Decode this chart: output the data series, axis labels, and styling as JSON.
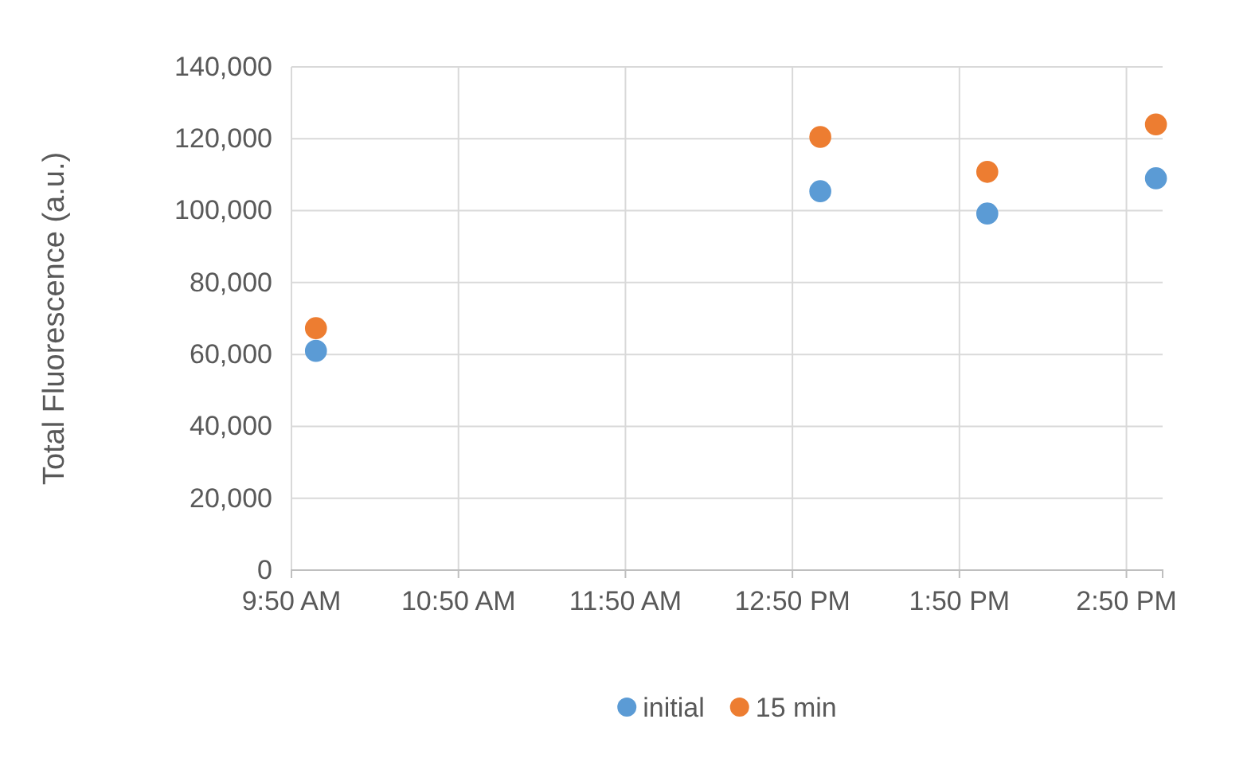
{
  "chart_data": {
    "type": "scatter",
    "ylabel": "Total Fluorescence (a.u.)",
    "x": [
      9.98,
      13.0,
      14.0,
      15.01
    ],
    "series": [
      {
        "name": "initial",
        "color": "#5b9bd5",
        "values": [
          61000,
          105400,
          99200,
          109000
        ]
      },
      {
        "name": "15 min",
        "color": "#ed7d31",
        "values": [
          67300,
          120500,
          110800,
          124000
        ]
      }
    ],
    "xlim": [
      9.8333,
      15.05
    ],
    "xticks": [
      {
        "value": 9.8333,
        "label": "9:50 AM"
      },
      {
        "value": 10.8333,
        "label": "10:50 AM"
      },
      {
        "value": 11.8333,
        "label": "11:50 AM"
      },
      {
        "value": 12.8333,
        "label": "12:50 PM"
      },
      {
        "value": 13.8333,
        "label": "1:50 PM"
      },
      {
        "value": 14.8333,
        "label": "2:50 PM"
      }
    ],
    "ylim": [
      0,
      140000
    ],
    "yticks": [
      {
        "value": 0,
        "label": "0"
      },
      {
        "value": 20000,
        "label": "20,000"
      },
      {
        "value": 40000,
        "label": "40,000"
      },
      {
        "value": 60000,
        "label": "60,000"
      },
      {
        "value": 80000,
        "label": "80,000"
      },
      {
        "value": 100000,
        "label": "100,000"
      },
      {
        "value": 120000,
        "label": "120,000"
      },
      {
        "value": 140000,
        "label": "140,000"
      }
    ],
    "grid": true,
    "legend": "bottom",
    "marker": "circle"
  }
}
